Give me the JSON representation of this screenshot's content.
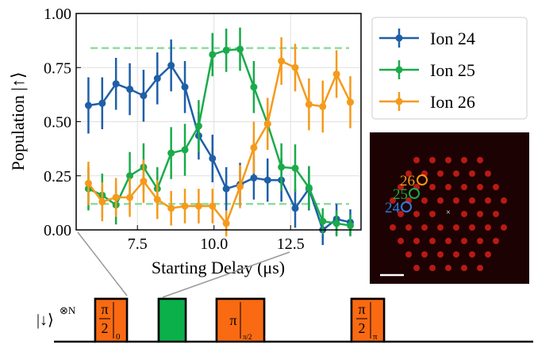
{
  "chart_data": {
    "type": "line",
    "x_label": "Starting Delay (μs)",
    "y_label": "Population |↑⟩",
    "x": [
      5.9,
      6.35,
      6.8,
      7.25,
      7.7,
      8.15,
      8.6,
      9.05,
      9.5,
      9.95,
      10.4,
      10.85,
      11.3,
      11.75,
      12.2,
      12.65,
      13.1,
      13.55,
      14.0,
      14.45
    ],
    "series": [
      {
        "name": "Ion 24",
        "color": "#1f5fa8",
        "values": [
          0.575,
          0.585,
          0.675,
          0.65,
          0.62,
          0.7,
          0.76,
          0.66,
          0.435,
          0.33,
          0.19,
          0.21,
          0.24,
          0.23,
          0.23,
          0.1,
          0.19,
          0.0,
          0.05,
          0.035
        ],
        "errors": [
          0.13,
          0.12,
          0.12,
          0.12,
          0.12,
          0.12,
          0.12,
          0.12,
          0.11,
          0.11,
          0.1,
          0.1,
          0.1,
          0.1,
          0.1,
          0.09,
          0.1,
          0.07,
          0.07,
          0.06
        ]
      },
      {
        "name": "Ion 25",
        "color": "#1aab4a",
        "values": [
          0.19,
          0.16,
          0.115,
          0.25,
          0.29,
          0.19,
          0.355,
          0.37,
          0.48,
          0.81,
          0.83,
          0.835,
          0.66,
          0.49,
          0.29,
          0.285,
          0.195,
          0.04,
          0.03,
          0.02
        ],
        "errors": [
          0.1,
          0.1,
          0.09,
          0.11,
          0.11,
          0.1,
          0.12,
          0.12,
          0.12,
          0.1,
          0.1,
          0.1,
          0.12,
          0.12,
          0.11,
          0.11,
          0.1,
          0.06,
          0.06,
          0.05
        ]
      },
      {
        "name": "Ion 26",
        "color": "#f59a1b",
        "values": [
          0.215,
          0.13,
          0.15,
          0.15,
          0.225,
          0.14,
          0.1,
          0.11,
          0.11,
          0.11,
          0.03,
          0.2,
          0.38,
          0.49,
          0.78,
          0.75,
          0.58,
          0.57,
          0.72,
          0.59
        ],
        "errors": [
          0.1,
          0.09,
          0.09,
          0.09,
          0.1,
          0.09,
          0.08,
          0.08,
          0.08,
          0.08,
          0.06,
          0.1,
          0.12,
          0.12,
          0.11,
          0.11,
          0.12,
          0.12,
          0.11,
          0.12
        ]
      }
    ],
    "reference_lines": [
      {
        "value": 0.84,
        "color": "#8fdc9f"
      },
      {
        "value": 0.12,
        "color": "#8fdc9f"
      }
    ],
    "xlim": [
      5.5,
      14.8
    ],
    "ylim": [
      0,
      1
    ],
    "xticks": [
      7.5,
      {
        "value": 10,
        "label": "10.0"
      },
      12.5
    ],
    "yticks": [
      {
        "value": 0,
        "label": "0.00"
      },
      {
        "value": 0.25,
        "label": "0.25"
      },
      {
        "value": 0.5,
        "label": "0.50"
      },
      {
        "value": 0.75,
        "label": "0.75"
      },
      {
        "value": 1,
        "label": "1.00"
      }
    ],
    "grid": true,
    "legend": "outside-right"
  },
  "image": {
    "labels": [
      "26",
      "25",
      "24"
    ]
  },
  "pulses": {
    "state": "|↓⟩",
    "power": "⊗N",
    "items": [
      {
        "top": "π",
        "bottom": "2",
        "phase": "0"
      },
      {
        "top": "π",
        "phase": "π/2"
      },
      {
        "top": "π",
        "bottom": "2",
        "phase": "π"
      }
    ]
  }
}
